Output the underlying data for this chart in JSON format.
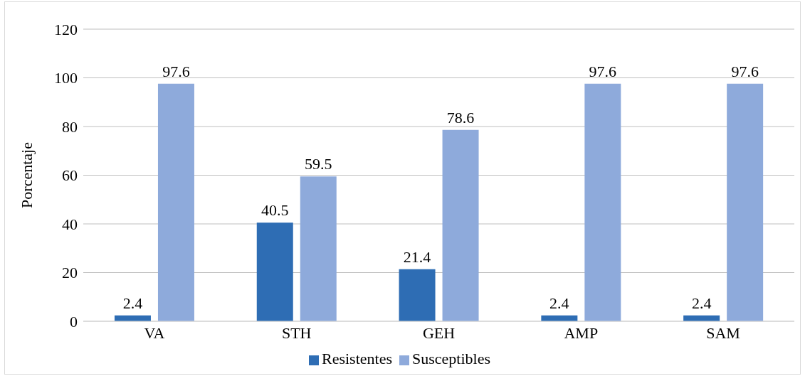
{
  "chart_data": {
    "type": "bar",
    "ylabel": "Porcentaje",
    "categories": [
      "VA",
      "STH",
      "GEH",
      "AMP",
      "SAM"
    ],
    "series": [
      {
        "name": "Resistentes",
        "color": "#2e6db4",
        "values": [
          2.4,
          40.5,
          21.4,
          2.4,
          2.4
        ]
      },
      {
        "name": "Susceptibles",
        "color": "#8eaadb",
        "values": [
          97.6,
          59.5,
          78.6,
          97.6,
          97.6
        ]
      }
    ],
    "ylim": [
      0,
      120
    ],
    "yticks": [
      0,
      20,
      40,
      60,
      80,
      100,
      120
    ],
    "grid": "y",
    "legend": "bottom",
    "data_labels": true
  }
}
